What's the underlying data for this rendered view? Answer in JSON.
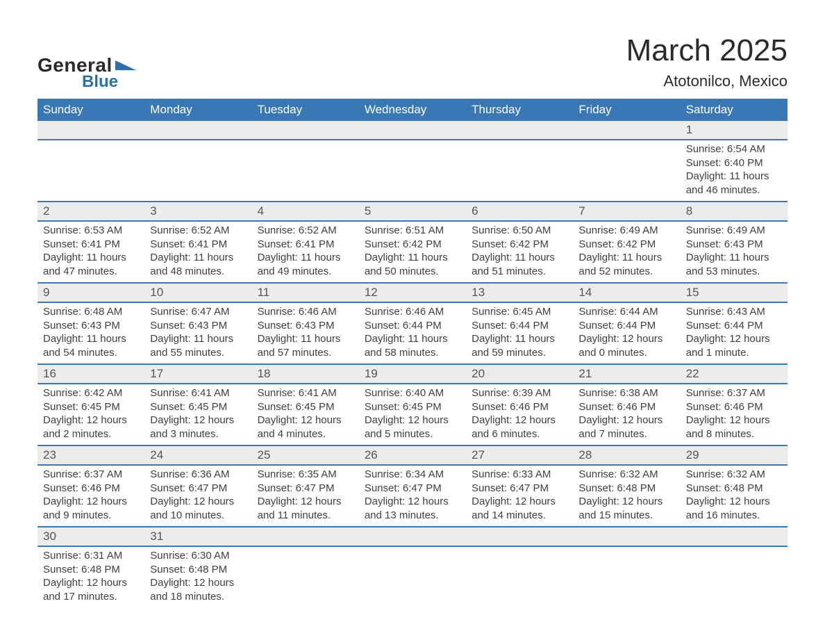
{
  "logo": {
    "word1": "General",
    "word2": "Blue",
    "brand_color": "#2f6fa8"
  },
  "title": "March 2025",
  "location": "Atotonilco, Mexico",
  "header_bg": "#3a77b5",
  "daynum_bg": "#ececec",
  "text_color": "#3a3a3a",
  "weekdays": [
    "Sunday",
    "Monday",
    "Tuesday",
    "Wednesday",
    "Thursday",
    "Friday",
    "Saturday"
  ],
  "weeks": [
    [
      null,
      null,
      null,
      null,
      null,
      null,
      {
        "n": "1",
        "sunrise": "Sunrise: 6:54 AM",
        "sunset": "Sunset: 6:40 PM",
        "dl1": "Daylight: 11 hours",
        "dl2": "and 46 minutes."
      }
    ],
    [
      {
        "n": "2",
        "sunrise": "Sunrise: 6:53 AM",
        "sunset": "Sunset: 6:41 PM",
        "dl1": "Daylight: 11 hours",
        "dl2": "and 47 minutes."
      },
      {
        "n": "3",
        "sunrise": "Sunrise: 6:52 AM",
        "sunset": "Sunset: 6:41 PM",
        "dl1": "Daylight: 11 hours",
        "dl2": "and 48 minutes."
      },
      {
        "n": "4",
        "sunrise": "Sunrise: 6:52 AM",
        "sunset": "Sunset: 6:41 PM",
        "dl1": "Daylight: 11 hours",
        "dl2": "and 49 minutes."
      },
      {
        "n": "5",
        "sunrise": "Sunrise: 6:51 AM",
        "sunset": "Sunset: 6:42 PM",
        "dl1": "Daylight: 11 hours",
        "dl2": "and 50 minutes."
      },
      {
        "n": "6",
        "sunrise": "Sunrise: 6:50 AM",
        "sunset": "Sunset: 6:42 PM",
        "dl1": "Daylight: 11 hours",
        "dl2": "and 51 minutes."
      },
      {
        "n": "7",
        "sunrise": "Sunrise: 6:49 AM",
        "sunset": "Sunset: 6:42 PM",
        "dl1": "Daylight: 11 hours",
        "dl2": "and 52 minutes."
      },
      {
        "n": "8",
        "sunrise": "Sunrise: 6:49 AM",
        "sunset": "Sunset: 6:43 PM",
        "dl1": "Daylight: 11 hours",
        "dl2": "and 53 minutes."
      }
    ],
    [
      {
        "n": "9",
        "sunrise": "Sunrise: 6:48 AM",
        "sunset": "Sunset: 6:43 PM",
        "dl1": "Daylight: 11 hours",
        "dl2": "and 54 minutes."
      },
      {
        "n": "10",
        "sunrise": "Sunrise: 6:47 AM",
        "sunset": "Sunset: 6:43 PM",
        "dl1": "Daylight: 11 hours",
        "dl2": "and 55 minutes."
      },
      {
        "n": "11",
        "sunrise": "Sunrise: 6:46 AM",
        "sunset": "Sunset: 6:43 PM",
        "dl1": "Daylight: 11 hours",
        "dl2": "and 57 minutes."
      },
      {
        "n": "12",
        "sunrise": "Sunrise: 6:46 AM",
        "sunset": "Sunset: 6:44 PM",
        "dl1": "Daylight: 11 hours",
        "dl2": "and 58 minutes."
      },
      {
        "n": "13",
        "sunrise": "Sunrise: 6:45 AM",
        "sunset": "Sunset: 6:44 PM",
        "dl1": "Daylight: 11 hours",
        "dl2": "and 59 minutes."
      },
      {
        "n": "14",
        "sunrise": "Sunrise: 6:44 AM",
        "sunset": "Sunset: 6:44 PM",
        "dl1": "Daylight: 12 hours",
        "dl2": "and 0 minutes."
      },
      {
        "n": "15",
        "sunrise": "Sunrise: 6:43 AM",
        "sunset": "Sunset: 6:44 PM",
        "dl1": "Daylight: 12 hours",
        "dl2": "and 1 minute."
      }
    ],
    [
      {
        "n": "16",
        "sunrise": "Sunrise: 6:42 AM",
        "sunset": "Sunset: 6:45 PM",
        "dl1": "Daylight: 12 hours",
        "dl2": "and 2 minutes."
      },
      {
        "n": "17",
        "sunrise": "Sunrise: 6:41 AM",
        "sunset": "Sunset: 6:45 PM",
        "dl1": "Daylight: 12 hours",
        "dl2": "and 3 minutes."
      },
      {
        "n": "18",
        "sunrise": "Sunrise: 6:41 AM",
        "sunset": "Sunset: 6:45 PM",
        "dl1": "Daylight: 12 hours",
        "dl2": "and 4 minutes."
      },
      {
        "n": "19",
        "sunrise": "Sunrise: 6:40 AM",
        "sunset": "Sunset: 6:45 PM",
        "dl1": "Daylight: 12 hours",
        "dl2": "and 5 minutes."
      },
      {
        "n": "20",
        "sunrise": "Sunrise: 6:39 AM",
        "sunset": "Sunset: 6:46 PM",
        "dl1": "Daylight: 12 hours",
        "dl2": "and 6 minutes."
      },
      {
        "n": "21",
        "sunrise": "Sunrise: 6:38 AM",
        "sunset": "Sunset: 6:46 PM",
        "dl1": "Daylight: 12 hours",
        "dl2": "and 7 minutes."
      },
      {
        "n": "22",
        "sunrise": "Sunrise: 6:37 AM",
        "sunset": "Sunset: 6:46 PM",
        "dl1": "Daylight: 12 hours",
        "dl2": "and 8 minutes."
      }
    ],
    [
      {
        "n": "23",
        "sunrise": "Sunrise: 6:37 AM",
        "sunset": "Sunset: 6:46 PM",
        "dl1": "Daylight: 12 hours",
        "dl2": "and 9 minutes."
      },
      {
        "n": "24",
        "sunrise": "Sunrise: 6:36 AM",
        "sunset": "Sunset: 6:47 PM",
        "dl1": "Daylight: 12 hours",
        "dl2": "and 10 minutes."
      },
      {
        "n": "25",
        "sunrise": "Sunrise: 6:35 AM",
        "sunset": "Sunset: 6:47 PM",
        "dl1": "Daylight: 12 hours",
        "dl2": "and 11 minutes."
      },
      {
        "n": "26",
        "sunrise": "Sunrise: 6:34 AM",
        "sunset": "Sunset: 6:47 PM",
        "dl1": "Daylight: 12 hours",
        "dl2": "and 13 minutes."
      },
      {
        "n": "27",
        "sunrise": "Sunrise: 6:33 AM",
        "sunset": "Sunset: 6:47 PM",
        "dl1": "Daylight: 12 hours",
        "dl2": "and 14 minutes."
      },
      {
        "n": "28",
        "sunrise": "Sunrise: 6:32 AM",
        "sunset": "Sunset: 6:48 PM",
        "dl1": "Daylight: 12 hours",
        "dl2": "and 15 minutes."
      },
      {
        "n": "29",
        "sunrise": "Sunrise: 6:32 AM",
        "sunset": "Sunset: 6:48 PM",
        "dl1": "Daylight: 12 hours",
        "dl2": "and 16 minutes."
      }
    ],
    [
      {
        "n": "30",
        "sunrise": "Sunrise: 6:31 AM",
        "sunset": "Sunset: 6:48 PM",
        "dl1": "Daylight: 12 hours",
        "dl2": "and 17 minutes."
      },
      {
        "n": "31",
        "sunrise": "Sunrise: 6:30 AM",
        "sunset": "Sunset: 6:48 PM",
        "dl1": "Daylight: 12 hours",
        "dl2": "and 18 minutes."
      },
      null,
      null,
      null,
      null,
      null
    ]
  ]
}
